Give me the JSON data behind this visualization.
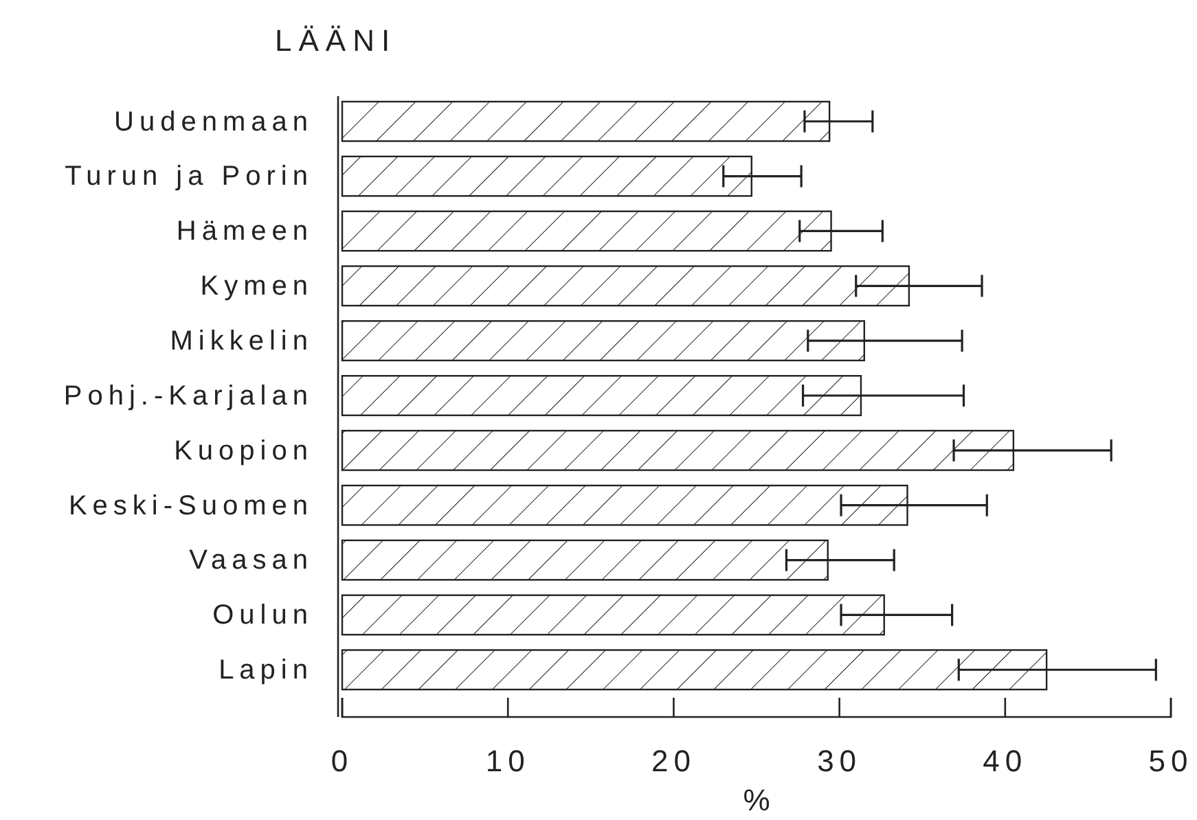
{
  "chart_data": {
    "type": "bar",
    "orientation": "horizontal",
    "title": "LÄÄNI",
    "xlabel": "%",
    "categories": [
      "Uudenmaan",
      "Turun ja Porin",
      "Hämeen",
      "Kymen",
      "Mikkelin",
      "Pohj.-Karjalan",
      "Kuopion",
      "Keski-Suomen",
      "Vaasan",
      "Oulun",
      "Lapin"
    ],
    "values": [
      29.4,
      24.7,
      29.5,
      34.2,
      31.5,
      31.3,
      40.5,
      34.1,
      29.3,
      32.7,
      42.5
    ],
    "errors": [
      [
        27.9,
        32.0
      ],
      [
        23.0,
        27.7
      ],
      [
        27.6,
        32.6
      ],
      [
        31.0,
        38.6
      ],
      [
        28.1,
        37.4
      ],
      [
        27.8,
        37.5
      ],
      [
        36.9,
        46.4
      ],
      [
        30.1,
        38.9
      ],
      [
        26.8,
        33.3
      ],
      [
        30.1,
        36.8
      ],
      [
        37.2,
        49.1
      ]
    ],
    "color": "#222222",
    "xlim": [
      0,
      50
    ],
    "xticks": [
      0,
      10,
      20,
      30,
      40,
      50
    ],
    "grid": false
  }
}
